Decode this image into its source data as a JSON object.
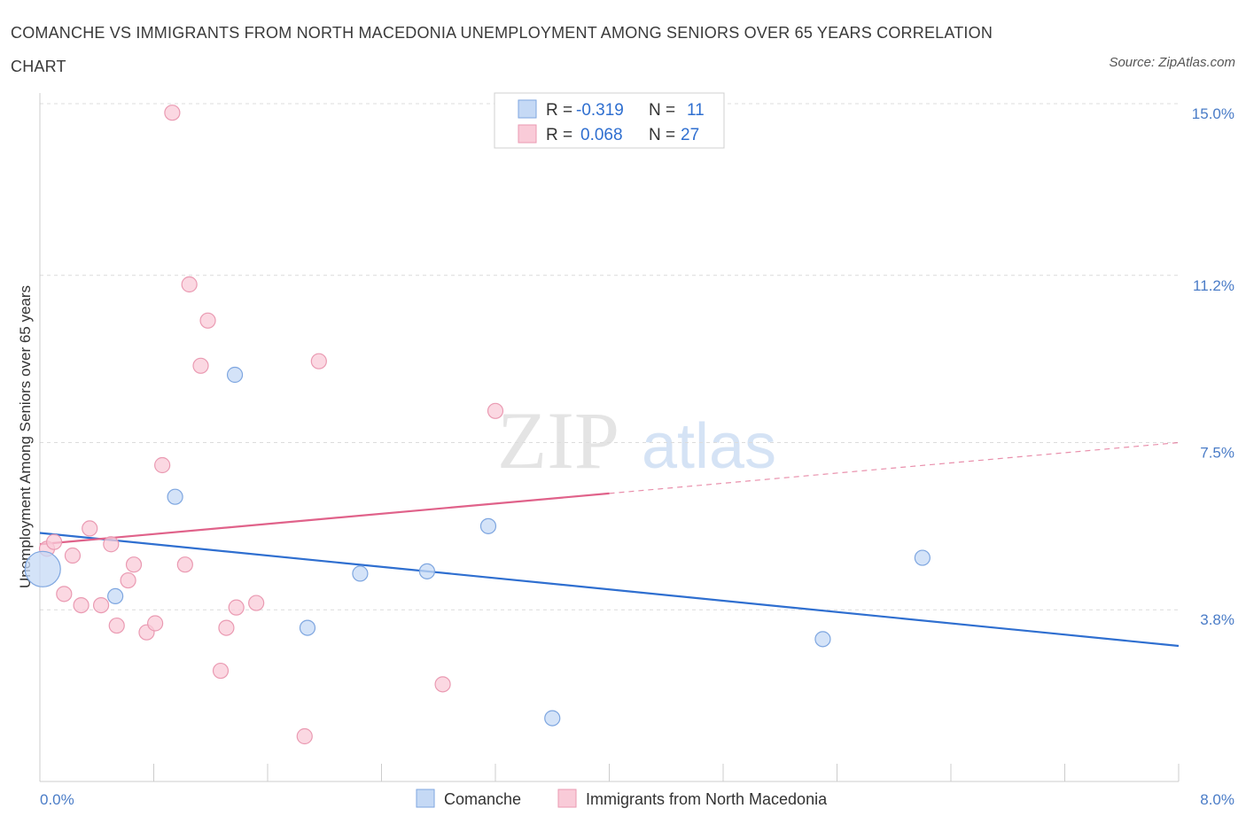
{
  "header": {
    "title": "COMANCHE VS IMMIGRANTS FROM NORTH MACEDONIA UNEMPLOYMENT AMONG SENIORS OVER 65 YEARS CORRELATION CHART",
    "source": "Source: ZipAtlas.com"
  },
  "watermark": {
    "zip": "ZIP",
    "atlas": "atlas"
  },
  "colors": {
    "comanche_fill": "#c5d9f5",
    "comanche_stroke": "#7ea6e0",
    "comanche_line": "#2f6fd0",
    "macedonia_fill": "#f9cbd8",
    "macedonia_stroke": "#ea9ab2",
    "macedonia_line": "#e0628a",
    "value_blue": "#2f6fd0",
    "grid": "#dcdcdc"
  },
  "legend": {
    "rows": [
      {
        "r_label": "R =",
        "r_value": "-0.319",
        "n_label": "N =",
        "n_value": "11"
      },
      {
        "r_label": "R =",
        "r_value": "0.068",
        "n_label": "N =",
        "n_value": "27"
      }
    ]
  },
  "chart_data": {
    "type": "scatter",
    "title": "COMANCHE VS IMMIGRANTS FROM NORTH MACEDONIA UNEMPLOYMENT AMONG SENIORS OVER 65 YEARS CORRELATION CHART",
    "xlabel": "",
    "ylabel": "Unemployment Among Seniors over 65 years",
    "xlim": [
      0,
      8.0
    ],
    "ylim": [
      0,
      15.0
    ],
    "x_tick_labels": [
      "0.0%",
      "8.0%"
    ],
    "y_ticks": [
      3.8,
      7.5,
      11.2,
      15.0
    ],
    "y_tick_labels": [
      "3.8%",
      "7.5%",
      "11.2%",
      "15.0%"
    ],
    "grid": true,
    "legend_position": "top-center",
    "series": [
      {
        "name": "Comanche",
        "r": -0.319,
        "n": 11,
        "trend": {
          "x0": 0.0,
          "y0": 5.5,
          "x1": 8.0,
          "y1": 3.0,
          "solid_until": 8.0
        },
        "points": [
          {
            "x": 0.02,
            "y": 4.7,
            "big": true
          },
          {
            "x": 0.53,
            "y": 4.1
          },
          {
            "x": 0.95,
            "y": 6.3
          },
          {
            "x": 1.37,
            "y": 9.0
          },
          {
            "x": 1.88,
            "y": 3.4
          },
          {
            "x": 2.25,
            "y": 4.6
          },
          {
            "x": 2.72,
            "y": 4.65
          },
          {
            "x": 3.15,
            "y": 5.65
          },
          {
            "x": 3.6,
            "y": 1.4
          },
          {
            "x": 5.5,
            "y": 3.15
          },
          {
            "x": 6.2,
            "y": 4.95
          }
        ]
      },
      {
        "name": "Immigrants from North Macedonia",
        "r": 0.068,
        "n": 27,
        "trend": {
          "x0": 0.0,
          "y0": 5.25,
          "x1": 8.0,
          "y1": 7.5,
          "solid_until": 4.0
        },
        "points": [
          {
            "x": 0.05,
            "y": 5.15
          },
          {
            "x": 0.1,
            "y": 5.3
          },
          {
            "x": 0.17,
            "y": 4.15
          },
          {
            "x": 0.23,
            "y": 5.0
          },
          {
            "x": 0.29,
            "y": 3.9
          },
          {
            "x": 0.35,
            "y": 5.6
          },
          {
            "x": 0.43,
            "y": 3.9
          },
          {
            "x": 0.5,
            "y": 5.25
          },
          {
            "x": 0.54,
            "y": 3.45
          },
          {
            "x": 0.62,
            "y": 4.45
          },
          {
            "x": 0.66,
            "y": 4.8
          },
          {
            "x": 0.75,
            "y": 3.3
          },
          {
            "x": 0.81,
            "y": 3.5
          },
          {
            "x": 0.86,
            "y": 7.0
          },
          {
            "x": 0.93,
            "y": 14.8
          },
          {
            "x": 1.02,
            "y": 4.8
          },
          {
            "x": 1.05,
            "y": 11.0
          },
          {
            "x": 1.13,
            "y": 9.2
          },
          {
            "x": 1.18,
            "y": 10.2
          },
          {
            "x": 1.27,
            "y": 2.45
          },
          {
            "x": 1.31,
            "y": 3.4
          },
          {
            "x": 1.38,
            "y": 3.85
          },
          {
            "x": 1.52,
            "y": 3.95
          },
          {
            "x": 1.86,
            "y": 1.0
          },
          {
            "x": 1.96,
            "y": 9.3
          },
          {
            "x": 2.83,
            "y": 2.15
          },
          {
            "x": 3.2,
            "y": 8.2
          }
        ]
      }
    ]
  },
  "bottom_legend": {
    "items": [
      {
        "label": "Comanche"
      },
      {
        "label": "Immigrants from North Macedonia"
      }
    ]
  }
}
